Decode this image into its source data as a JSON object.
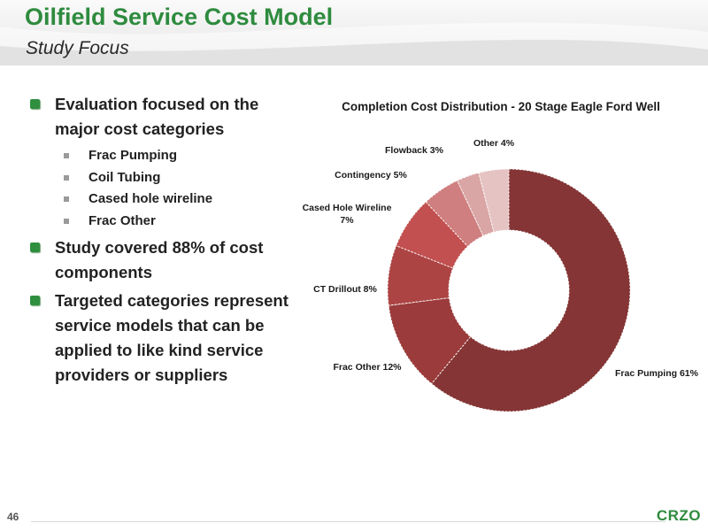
{
  "header": {
    "title": "Oilfield Service Cost Model",
    "subtitle": "Study Focus"
  },
  "bullets": [
    {
      "text": "Evaluation focused on the major cost categories",
      "subitems": [
        "Frac Pumping",
        "Coil Tubing",
        "Cased hole wireline",
        "Frac Other"
      ]
    },
    {
      "text": "Study covered 88% of cost components",
      "subitems": []
    },
    {
      "text": "Targeted categories represent service models that can be applied to like kind service providers or suppliers",
      "subitems": []
    }
  ],
  "footer": {
    "page_number": "46",
    "logo": "CRZO"
  },
  "colors": {
    "title_green": "#2e8b3e",
    "bullet_green": "#2f8f3f"
  },
  "chart_data": {
    "type": "pie",
    "donut": true,
    "title": "Completion Cost Distribution - 20 Stage Eagle Ford Well",
    "slices": [
      {
        "label": "Frac Pumping 61%",
        "value": 61,
        "color": "#853535"
      },
      {
        "label": "Frac Other 12%",
        "value": 12,
        "color": "#9b3b3b"
      },
      {
        "label": "CT Drillout 8%",
        "value": 8,
        "color": "#ad4444"
      },
      {
        "label": "Cased Hole Wireline 7%",
        "value": 7,
        "color": "#c25050"
      },
      {
        "label": "Contingency 5%",
        "value": 5,
        "color": "#cf7f7f"
      },
      {
        "label": "Flowback 3%",
        "value": 3,
        "color": "#daa5a5"
      },
      {
        "label": "Other 4%",
        "value": 4,
        "color": "#e6c3c3"
      }
    ]
  }
}
